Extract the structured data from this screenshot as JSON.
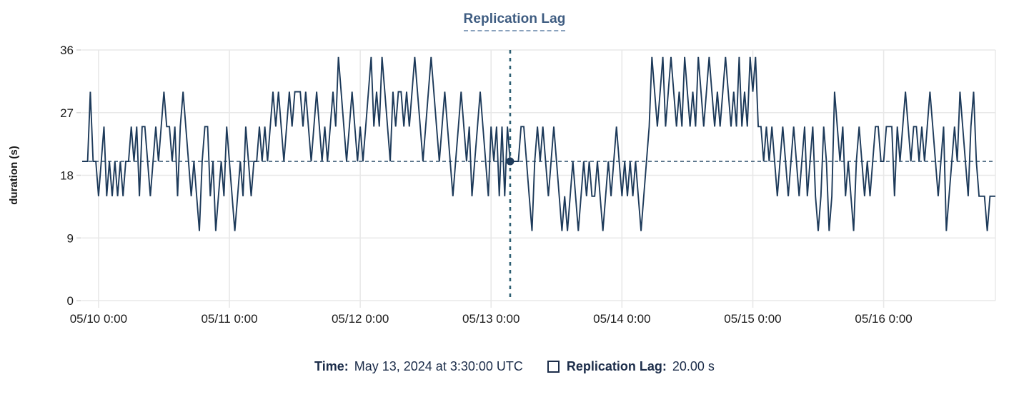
{
  "title": "Replication Lag",
  "colors": {
    "series_line": "#1d3a5a",
    "crosshair_vertical": "#2d5f73",
    "crosshair_horizontal": "#284b69",
    "crosshair_dot": "#1d3a5a",
    "gridline": "#e8e8e8",
    "tick": "#d9d9d9",
    "axis_text": "#1a1a1a",
    "title_text": "#3e5c81",
    "footer_text": "#1c2d4a",
    "background": "#ffffff"
  },
  "chart_data": {
    "type": "line",
    "title": "Replication Lag",
    "xlabel": "",
    "ylabel": "duration (s)",
    "ylim": [
      0,
      36
    ],
    "yticks": [
      0,
      9,
      18,
      27,
      36
    ],
    "xticks": [
      "05/10 0:00",
      "05/11 0:00",
      "05/12 0:00",
      "05/13 0:00",
      "05/14 0:00",
      "05/15 0:00",
      "05/16 0:00"
    ],
    "grid": true,
    "legend_position": "none",
    "series": [
      {
        "name": "Replication Lag",
        "unit": "s",
        "start": "2024-05-09 21:00 UTC",
        "interval_minutes": 30,
        "values": [
          20,
          20,
          20,
          30,
          20,
          20,
          15,
          20,
          25,
          15,
          20,
          15,
          20,
          15,
          20,
          15,
          20,
          20,
          25,
          20,
          25,
          15,
          25,
          25,
          20,
          15,
          20,
          25,
          20,
          25,
          30,
          25,
          25,
          20,
          25,
          15,
          25,
          30,
          25,
          20,
          15,
          20,
          15,
          10,
          20,
          25,
          25,
          15,
          20,
          10,
          15,
          20,
          15,
          25,
          20,
          15,
          10,
          15,
          20,
          15,
          25,
          20,
          15,
          20,
          20,
          25,
          20,
          25,
          20,
          25,
          30,
          25,
          30,
          25,
          20,
          25,
          30,
          25,
          30,
          30,
          30,
          25,
          30,
          25,
          20,
          25,
          30,
          25,
          20,
          25,
          20,
          25,
          30,
          25,
          35,
          30,
          25,
          20,
          25,
          30,
          25,
          20,
          25,
          20,
          25,
          30,
          35,
          25,
          30,
          25,
          35,
          30,
          25,
          20,
          30,
          25,
          30,
          30,
          25,
          30,
          25,
          30,
          35,
          30,
          25,
          20,
          25,
          30,
          35,
          30,
          25,
          20,
          25,
          30,
          25,
          20,
          15,
          20,
          25,
          30,
          25,
          20,
          25,
          15,
          20,
          25,
          30,
          25,
          20,
          15,
          25,
          20,
          25,
          15,
          25,
          15,
          25,
          20,
          20,
          20,
          20,
          25,
          25,
          20,
          15,
          10,
          20,
          25,
          20,
          25,
          20,
          15,
          20,
          25,
          20,
          15,
          10,
          15,
          10,
          15,
          20,
          15,
          10,
          15,
          20,
          15,
          20,
          15,
          15,
          20,
          15,
          10,
          15,
          20,
          15,
          20,
          25,
          20,
          15,
          20,
          15,
          20,
          15,
          20,
          15,
          10,
          15,
          20,
          25,
          35,
          30,
          25,
          30,
          35,
          25,
          30,
          35,
          30,
          25,
          30,
          25,
          35,
          30,
          25,
          30,
          25,
          35,
          30,
          25,
          30,
          35,
          30,
          25,
          30,
          25,
          30,
          35,
          30,
          25,
          30,
          25,
          35,
          25,
          30,
          25,
          35,
          30,
          35,
          25,
          25,
          20,
          25,
          20,
          25,
          20,
          15,
          20,
          25,
          20,
          15,
          20,
          25,
          20,
          15,
          20,
          25,
          15,
          20,
          25,
          15,
          10,
          15,
          25,
          20,
          10,
          15,
          30,
          25,
          20,
          25,
          15,
          20,
          15,
          10,
          20,
          25,
          20,
          15,
          20,
          15,
          20,
          25,
          25,
          20,
          20,
          25,
          25,
          25,
          15,
          25,
          20,
          25,
          30,
          25,
          20,
          25,
          25,
          20,
          25,
          20,
          25,
          30,
          25,
          20,
          15,
          20,
          25,
          10,
          15,
          20,
          25,
          20,
          30,
          25,
          20,
          15,
          25,
          30,
          20,
          15,
          15,
          15,
          10,
          15,
          15,
          15
        ]
      }
    ],
    "crosshair": {
      "point_index": 157,
      "time_label": "May 13, 2024 at 3:30:00 UTC",
      "value": 20,
      "value_label": "20.00 s"
    }
  },
  "footer": {
    "time_label": "Time:",
    "time_value": "May 13, 2024 at 3:30:00 UTC",
    "series_label": "Replication Lag:",
    "series_value": "20.00 s"
  }
}
